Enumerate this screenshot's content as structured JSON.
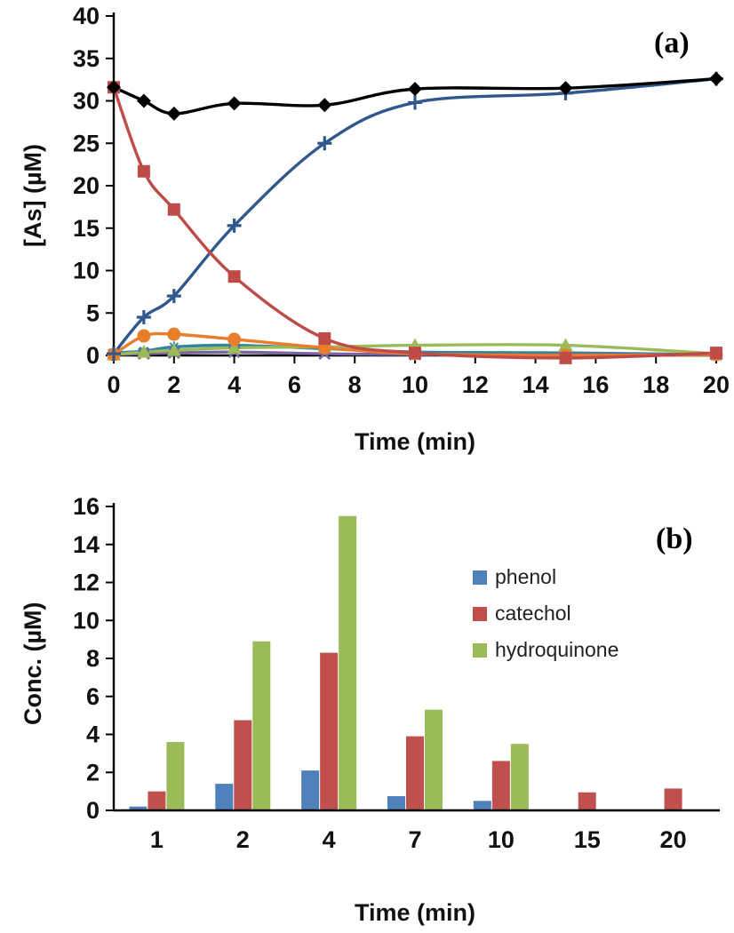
{
  "chart_data": [
    {
      "type": "line",
      "panel_label": "(a)",
      "xlabel": "Time (min)",
      "ylabel": "[As] (µM)",
      "xlim": [
        0,
        20
      ],
      "ylim": [
        0,
        40
      ],
      "x_ticks": [
        0,
        2,
        4,
        6,
        8,
        10,
        12,
        14,
        16,
        18,
        20
      ],
      "y_ticks": [
        0,
        5,
        10,
        15,
        20,
        25,
        30,
        35,
        40
      ],
      "grid": false,
      "legend": "none",
      "x": [
        0,
        1,
        2,
        4,
        7,
        10,
        15,
        20
      ],
      "series": [
        {
          "name": "teal-asterisk-series",
          "marker": "asterisk",
          "color": "#31859C",
          "values": [
            0.3,
            0.5,
            1.0,
            1.2,
            0.8,
            0.4,
            0.3,
            0.1
          ]
        },
        {
          "name": "purple-x-series",
          "marker": "x",
          "color": "#7B64A0",
          "values": [
            0.1,
            0.2,
            0.3,
            0.4,
            0.2,
            0.1,
            0.1,
            0.1
          ]
        },
        {
          "name": "green-triangle-series",
          "marker": "triangle",
          "color": "#9BBB59",
          "values": [
            0.1,
            0.4,
            0.6,
            0.9,
            1.0,
            1.2,
            1.2,
            0.2
          ]
        },
        {
          "name": "orange-circle-series",
          "marker": "circle",
          "color": "#E87D2B",
          "values": [
            0.1,
            2.3,
            2.5,
            1.9,
            0.9,
            0.2,
            0.0,
            0.1
          ]
        },
        {
          "name": "blue-plus-series",
          "marker": "plus",
          "color": "#31588C",
          "values": [
            0.2,
            4.5,
            7.0,
            15.3,
            25.0,
            29.8,
            30.9,
            32.6
          ]
        },
        {
          "name": "red-square-series",
          "marker": "square",
          "color": "#BE4B48",
          "values": [
            31.6,
            21.7,
            17.2,
            9.3,
            2.0,
            0.3,
            -0.3,
            0.3
          ]
        },
        {
          "name": "black-diamond-series",
          "marker": "diamond",
          "color": "#000000",
          "values": [
            31.6,
            30.0,
            28.5,
            29.7,
            29.5,
            31.4,
            31.5,
            32.6
          ]
        }
      ]
    },
    {
      "type": "bar",
      "panel_label": "(b)",
      "xlabel": "Time (min)",
      "ylabel": "Conc. (µM)",
      "ylim": [
        0,
        16
      ],
      "y_ticks": [
        0,
        2,
        4,
        6,
        8,
        10,
        12,
        14,
        16
      ],
      "grid": false,
      "legend_position": "inside-right",
      "categories": [
        "1",
        "2",
        "4",
        "7",
        "10",
        "15",
        "20"
      ],
      "series": [
        {
          "name": "phenol",
          "color": "#4F81BD",
          "values": [
            0.2,
            1.4,
            2.1,
            0.75,
            0.5,
            0,
            0
          ]
        },
        {
          "name": "catechol",
          "color": "#C0504D",
          "values": [
            1.0,
            4.75,
            8.3,
            3.9,
            2.6,
            0.95,
            1.15
          ]
        },
        {
          "name": "hydroquinone",
          "color": "#9BBB59",
          "values": [
            3.6,
            8.9,
            15.5,
            5.3,
            3.5,
            0,
            0
          ]
        }
      ]
    }
  ]
}
